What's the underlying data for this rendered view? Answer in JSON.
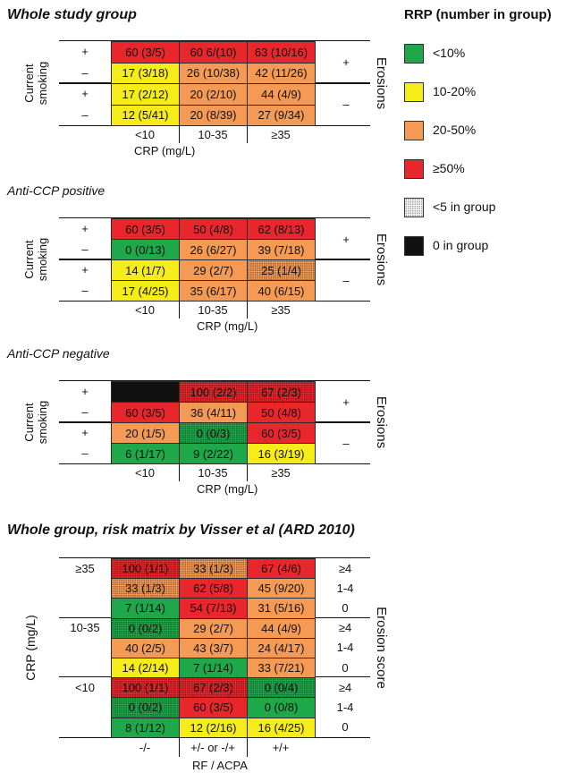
{
  "legend": {
    "title": "RRP (number in group)",
    "items": [
      {
        "label": "<10%",
        "color": "#1ea84a",
        "pattern": "solid"
      },
      {
        "label": "10-20%",
        "color": "#f5ec1a",
        "pattern": "solid"
      },
      {
        "label": "20-50%",
        "color": "#f59a55",
        "pattern": "solid"
      },
      {
        "label": "≥50%",
        "color": "#e8262b",
        "pattern": "solid"
      },
      {
        "label": "<5 in group",
        "color": "#ffffff",
        "pattern": "dotted"
      },
      {
        "label": "0 in group",
        "color": "#111111",
        "pattern": "solid"
      }
    ]
  },
  "chart_data": [
    {
      "type": "table",
      "title": "Whole study group",
      "title_style": "bold-italic",
      "row_axis_label": "Current smoking",
      "right_axis_label": "Erosions",
      "col_axis_label": "CRP (mg/L)",
      "col_labels": [
        "<10",
        "10-35",
        "≥35"
      ],
      "row_labels": [
        "+",
        "–",
        "+",
        "–"
      ],
      "right_labels": [
        "+",
        "–"
      ],
      "cells": [
        [
          {
            "text": "60 (3/5)",
            "color": "red",
            "dotted": false
          },
          {
            "text": "60 6/(10)",
            "color": "red",
            "dotted": false
          },
          {
            "text": "63 (10/16)",
            "color": "red",
            "dotted": false
          }
        ],
        [
          {
            "text": "17 (3/18)",
            "color": "yellow",
            "dotted": false
          },
          {
            "text": "26 (10/38)",
            "color": "orange",
            "dotted": false
          },
          {
            "text": "42 (11/26)",
            "color": "orange",
            "dotted": false
          }
        ],
        [
          {
            "text": "17 (2/12)",
            "color": "yellow",
            "dotted": false
          },
          {
            "text": "20 (2/10)",
            "color": "orange",
            "dotted": false
          },
          {
            "text": "44 (4/9)",
            "color": "orange",
            "dotted": false
          }
        ],
        [
          {
            "text": "12 (5/41)",
            "color": "yellow",
            "dotted": false
          },
          {
            "text": "20 (8/39)",
            "color": "orange",
            "dotted": false
          },
          {
            "text": "27 (9/34)",
            "color": "orange",
            "dotted": false
          }
        ]
      ]
    },
    {
      "type": "table",
      "title": "Anti-CCP positive",
      "title_style": "italic",
      "row_axis_label": "Current smoking",
      "right_axis_label": "Erosions",
      "col_axis_label": "CRP (mg/L)",
      "col_labels": [
        "<10",
        "10-35",
        "≥35"
      ],
      "row_labels": [
        "+",
        "–",
        "+",
        "–"
      ],
      "right_labels": [
        "+",
        "–"
      ],
      "cells": [
        [
          {
            "text": "60 (3/5)",
            "color": "red",
            "dotted": false
          },
          {
            "text": "50 (4/8)",
            "color": "red",
            "dotted": false
          },
          {
            "text": "62 (8/13)",
            "color": "red",
            "dotted": false
          }
        ],
        [
          {
            "text": "0 (0/13)",
            "color": "green",
            "dotted": false
          },
          {
            "text": "26 (6/27)",
            "color": "orange",
            "dotted": false
          },
          {
            "text": "39 (7/18)",
            "color": "orange",
            "dotted": false
          }
        ],
        [
          {
            "text": "14 (1/7)",
            "color": "yellow",
            "dotted": false
          },
          {
            "text": "29 (2/7)",
            "color": "orange",
            "dotted": false
          },
          {
            "text": "25 (1/4)",
            "color": "orange",
            "dotted": true
          }
        ],
        [
          {
            "text": "17 (4/25)",
            "color": "yellow",
            "dotted": false
          },
          {
            "text": "35 (6/17)",
            "color": "orange",
            "dotted": false
          },
          {
            "text": "40 (6/15)",
            "color": "orange",
            "dotted": false
          }
        ]
      ]
    },
    {
      "type": "table",
      "title": "Anti-CCP negative",
      "title_style": "italic",
      "row_axis_label": "Current smoking",
      "right_axis_label": "Erosions",
      "col_axis_label": "CRP (mg/L)",
      "col_labels": [
        "<10",
        "10-35",
        "≥35"
      ],
      "row_labels": [
        "+",
        "–",
        "+",
        "–"
      ],
      "right_labels": [
        "+",
        "–"
      ],
      "cells": [
        [
          {
            "text": "",
            "color": "black",
            "dotted": false
          },
          {
            "text": "100 (2/2)",
            "color": "red",
            "dotted": true
          },
          {
            "text": "67 (2/3)",
            "color": "red",
            "dotted": true
          }
        ],
        [
          {
            "text": "60 (3/5)",
            "color": "red",
            "dotted": false
          },
          {
            "text": "36 (4/11)",
            "color": "orange",
            "dotted": false
          },
          {
            "text": "50 (4/8)",
            "color": "red",
            "dotted": false
          }
        ],
        [
          {
            "text": "20 (1/5)",
            "color": "orange",
            "dotted": false
          },
          {
            "text": "0 (0/3)",
            "color": "green",
            "dotted": true
          },
          {
            "text": "60 (3/5)",
            "color": "red",
            "dotted": false
          }
        ],
        [
          {
            "text": "6 (1/17)",
            "color": "green",
            "dotted": false
          },
          {
            "text": "9 (2/22)",
            "color": "green",
            "dotted": false
          },
          {
            "text": "16 (3/19)",
            "color": "yellow",
            "dotted": false
          }
        ]
      ]
    },
    {
      "type": "table",
      "title": "Whole group, risk matrix by Visser et al (ARD 2010)",
      "title_style": "bold-italic",
      "row_axis_label": "CRP (mg/L)",
      "right_axis_label": "Erosion score",
      "col_axis_label": "RF / ACPA",
      "col_labels": [
        "-/-",
        "+/- or -/+",
        "+/+"
      ],
      "row_group_labels": [
        "≥35",
        "10-35",
        "<10"
      ],
      "right_labels": [
        "≥4",
        "1-4",
        "0",
        "≥4",
        "1-4",
        "0",
        "≥4",
        "1-4",
        "0"
      ],
      "cells": [
        [
          {
            "text": "100 (1/1)",
            "color": "red",
            "dotted": true
          },
          {
            "text": "33 (1/3)",
            "color": "orange",
            "dotted": true
          },
          {
            "text": "67 (4/6)",
            "color": "red",
            "dotted": false
          }
        ],
        [
          {
            "text": "33 (1/3)",
            "color": "orange",
            "dotted": true
          },
          {
            "text": "62 (5/8)",
            "color": "red",
            "dotted": false
          },
          {
            "text": "45 (9/20)",
            "color": "orange",
            "dotted": false
          }
        ],
        [
          {
            "text": "7 (1/14)",
            "color": "green",
            "dotted": false
          },
          {
            "text": "54 (7/13)",
            "color": "red",
            "dotted": false
          },
          {
            "text": "31 (5/16)",
            "color": "orange",
            "dotted": false
          }
        ],
        [
          {
            "text": "0 (0/2)",
            "color": "green",
            "dotted": true
          },
          {
            "text": "29 (2/7)",
            "color": "orange",
            "dotted": false
          },
          {
            "text": "44 (4/9)",
            "color": "orange",
            "dotted": false
          }
        ],
        [
          {
            "text": "40 (2/5)",
            "color": "orange",
            "dotted": false
          },
          {
            "text": "43 (3/7)",
            "color": "orange",
            "dotted": false
          },
          {
            "text": "24 (4/17)",
            "color": "orange",
            "dotted": false
          }
        ],
        [
          {
            "text": "14 (2/14)",
            "color": "yellow",
            "dotted": false
          },
          {
            "text": "7 (1/14)",
            "color": "green",
            "dotted": false
          },
          {
            "text": "33 (7/21)",
            "color": "orange",
            "dotted": false
          }
        ],
        [
          {
            "text": "100 (1/1)",
            "color": "red",
            "dotted": true
          },
          {
            "text": "67 (2/3)",
            "color": "red",
            "dotted": true
          },
          {
            "text": "0 (0/4)",
            "color": "green",
            "dotted": true
          }
        ],
        [
          {
            "text": "0 (0/2)",
            "color": "green",
            "dotted": true
          },
          {
            "text": "60 (3/5)",
            "color": "red",
            "dotted": false
          },
          {
            "text": "0 (0/8)",
            "color": "green",
            "dotted": false
          }
        ],
        [
          {
            "text": "8 (1/12)",
            "color": "green",
            "dotted": false
          },
          {
            "text": "12 (2/16)",
            "color": "yellow",
            "dotted": false
          },
          {
            "text": "16 (4/25)",
            "color": "yellow",
            "dotted": false
          }
        ]
      ]
    }
  ],
  "colors": {
    "green": "#1ea84a",
    "yellow": "#f5ec1a",
    "orange": "#f59a55",
    "red": "#e8262b",
    "black": "#111111"
  }
}
